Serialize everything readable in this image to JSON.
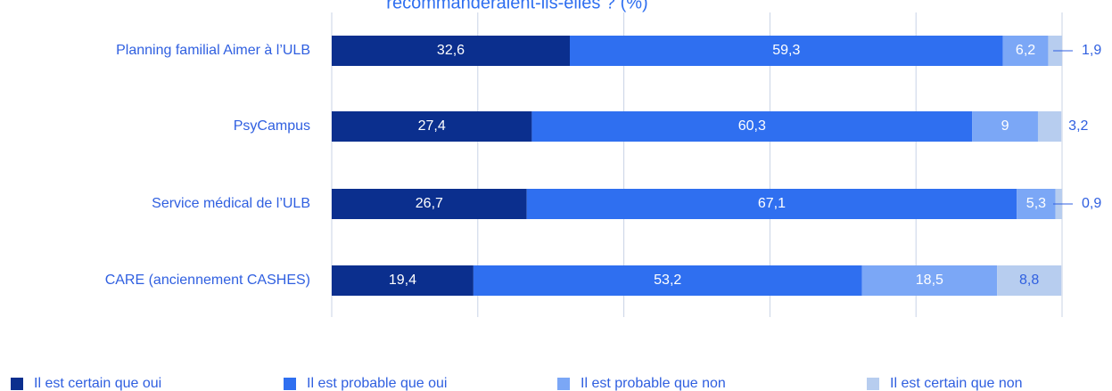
{
  "chart_data": {
    "type": "stacked-barh",
    "title": "recommanderaient-ils-elles ? (%)",
    "categories": [
      "Planning familial Aimer à l’ULB",
      "PsyCampus",
      "Service médical de l’ULB",
      "CARE (anciennement CASHES)"
    ],
    "series": [
      {
        "name": "Il est certain que oui",
        "color": "#0b2f8e",
        "values": [
          32.6,
          27.4,
          26.7,
          19.4
        ],
        "value_labels": [
          "32,6",
          "27,4",
          "26,7",
          "19,4"
        ]
      },
      {
        "name": "Il est probable que oui",
        "color": "#2f6ff0",
        "values": [
          59.3,
          60.3,
          67.1,
          53.2
        ],
        "value_labels": [
          "59,3",
          "60,3",
          "67,1",
          "53,2"
        ]
      },
      {
        "name": "Il est probable que non",
        "color": "#7ba7f6",
        "values": [
          6.2,
          9,
          5.3,
          18.5
        ],
        "value_labels": [
          "6,2",
          "9",
          "5,3",
          "18,5"
        ]
      },
      {
        "name": "Il est certain que non",
        "color": "#b7cdef",
        "values": [
          1.9,
          3.2,
          0.9,
          8.8
        ],
        "value_labels": [
          "1,9",
          "3,2",
          "0,9",
          "8,8"
        ]
      }
    ],
    "xlim": [
      0,
      100
    ],
    "xticks": [
      0,
      20,
      40,
      60,
      80,
      100
    ],
    "grid": true,
    "legend": "bottom"
  }
}
